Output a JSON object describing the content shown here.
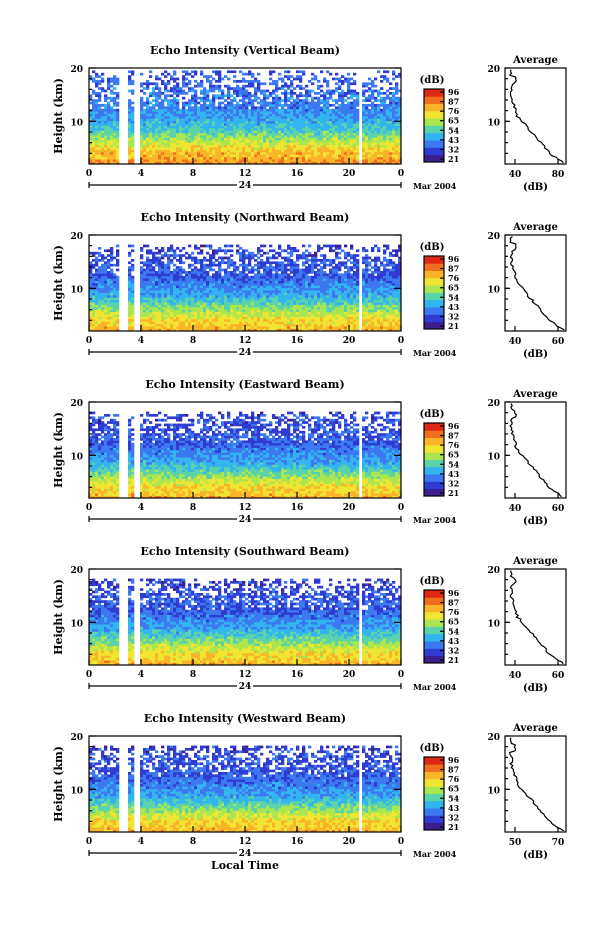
{
  "chart_data": [
    {
      "type": "heatmap",
      "title": "Echo Intensity (Vertical Beam)",
      "ylabel": "Height (km)",
      "x_ticks": [
        "0",
        "4",
        "8",
        "12",
        "16",
        "20",
        "0"
      ],
      "y_ticks": [
        "20",
        "10"
      ],
      "ylim": [
        2,
        20
      ],
      "day_label": "24",
      "date_label": "Mar 2004",
      "colorbar": {
        "unit": "(dB)",
        "ticks": [
          "96",
          "87",
          "76",
          "65",
          "54",
          "43",
          "32",
          "21"
        ]
      },
      "average": {
        "title": "Average",
        "xlabel": "(dB)",
        "x_ticks": [
          "40",
          "80"
        ],
        "y_ticks": [
          "20",
          "10"
        ]
      }
    },
    {
      "type": "heatmap",
      "title": "Echo Intensity (Northward Beam)",
      "ylabel": "Height (km)",
      "x_ticks": [
        "0",
        "4",
        "8",
        "12",
        "16",
        "20",
        "0"
      ],
      "y_ticks": [
        "20",
        "10"
      ],
      "ylim": [
        2,
        20
      ],
      "day_label": "24",
      "date_label": "Mar 2004",
      "colorbar": {
        "unit": "(dB)",
        "ticks": [
          "96",
          "87",
          "76",
          "65",
          "54",
          "43",
          "32",
          "21"
        ]
      },
      "average": {
        "title": "Average",
        "xlabel": "(dB)",
        "x_ticks": [
          "40",
          "60"
        ],
        "y_ticks": [
          "20",
          "10"
        ]
      }
    },
    {
      "type": "heatmap",
      "title": "Echo Intensity (Eastward Beam)",
      "ylabel": "Height (km)",
      "x_ticks": [
        "0",
        "4",
        "8",
        "12",
        "16",
        "20",
        "0"
      ],
      "y_ticks": [
        "20",
        "10"
      ],
      "ylim": [
        2,
        20
      ],
      "day_label": "24",
      "date_label": "Mar 2004",
      "colorbar": {
        "unit": "(dB)",
        "ticks": [
          "96",
          "87",
          "76",
          "65",
          "54",
          "43",
          "32",
          "21"
        ]
      },
      "average": {
        "title": "Average",
        "xlabel": "(dB)",
        "x_ticks": [
          "40",
          "60"
        ],
        "y_ticks": [
          "20",
          "10"
        ]
      }
    },
    {
      "type": "heatmap",
      "title": "Echo Intensity (Southward Beam)",
      "ylabel": "Height (km)",
      "x_ticks": [
        "0",
        "4",
        "8",
        "12",
        "16",
        "20",
        "0"
      ],
      "y_ticks": [
        "20",
        "10"
      ],
      "ylim": [
        2,
        20
      ],
      "day_label": "24",
      "date_label": "Mar 2004",
      "colorbar": {
        "unit": "(dB)",
        "ticks": [
          "96",
          "87",
          "76",
          "65",
          "54",
          "43",
          "32",
          "21"
        ]
      },
      "average": {
        "title": "Average",
        "xlabel": "(dB)",
        "x_ticks": [
          "40",
          "60"
        ],
        "y_ticks": [
          "20",
          "10"
        ]
      }
    },
    {
      "type": "heatmap",
      "title": "Echo Intensity (Westward Beam)",
      "ylabel": "Height (km)",
      "x_ticks": [
        "0",
        "4",
        "8",
        "12",
        "16",
        "20",
        "0"
      ],
      "y_ticks": [
        "20",
        "10"
      ],
      "ylim": [
        2,
        20
      ],
      "day_label": "24",
      "date_label": "Mar 2004",
      "xlabel": "Local Time",
      "colorbar": {
        "unit": "(dB)",
        "ticks": [
          "96",
          "87",
          "76",
          "65",
          "54",
          "43",
          "32",
          "21"
        ]
      },
      "average": {
        "title": "Average",
        "xlabel": "(dB)",
        "x_ticks": [
          "50",
          "70"
        ],
        "y_ticks": [
          "20",
          "10"
        ]
      }
    }
  ],
  "colors": {
    "scale": [
      "#3c1e8c",
      "#2e3cd2",
      "#3c78f0",
      "#32b4f0",
      "#5ad2aa",
      "#aae650",
      "#f0e632",
      "#fab428",
      "#f06e1e",
      "#dc2814"
    ],
    "axes": "#000000",
    "profile": "#000000"
  }
}
